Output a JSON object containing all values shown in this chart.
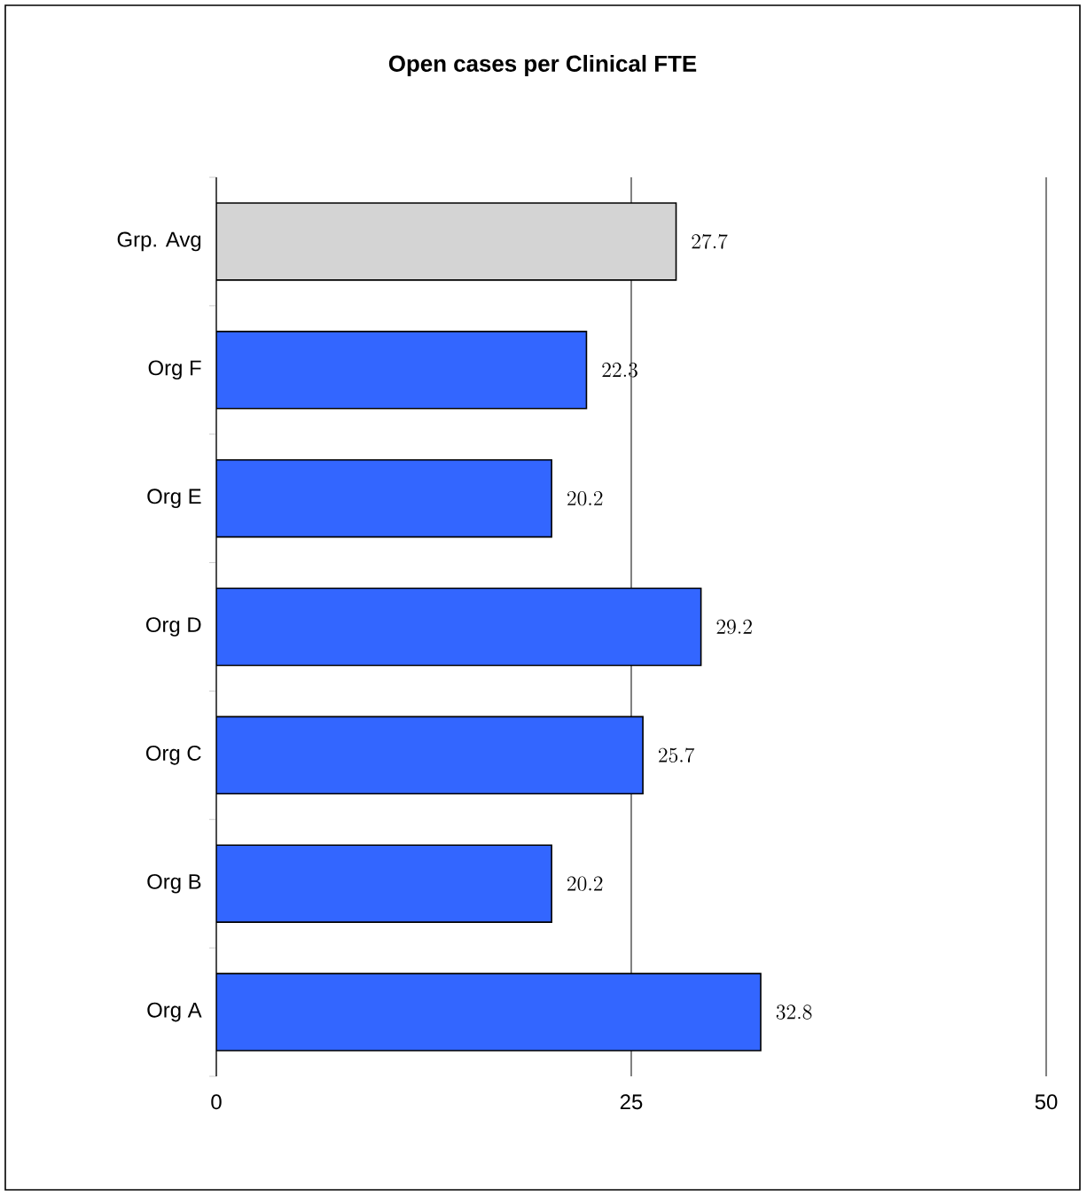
{
  "chart_data": {
    "type": "bar",
    "orientation": "horizontal",
    "title": "Open cases per Clinical FTE",
    "categories": [
      "Grp. Avg",
      "Org F",
      "Org E",
      "Org D",
      "Org C",
      "Org B",
      "Org A"
    ],
    "values": [
      27.7,
      22.3,
      20.2,
      29.2,
      25.7,
      20.2,
      32.8
    ],
    "colors": [
      "#d4d4d4",
      "#3366ff",
      "#3366ff",
      "#3366ff",
      "#3366ff",
      "#3366ff",
      "#3366ff"
    ],
    "xlim": [
      0,
      50
    ],
    "xticks": [
      0,
      25,
      50
    ],
    "grid": "x",
    "data_labels": true
  }
}
